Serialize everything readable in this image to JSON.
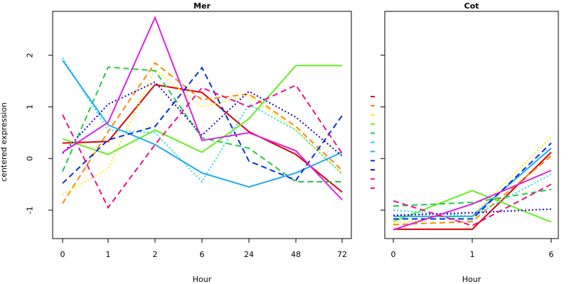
{
  "chart_data": [
    {
      "type": "line",
      "title": "Mer",
      "xlabel": "Hour",
      "ylabel": "centered expression",
      "categories": [
        "0",
        "1",
        "2",
        "6",
        "24",
        "48",
        "72"
      ],
      "yticks": [
        -1,
        0,
        1,
        2
      ],
      "ylim": [
        -1.55,
        2.85
      ],
      "series": [
        {
          "color": "#dd0000",
          "dash": "solid",
          "values": [
            0.3,
            0.33,
            1.43,
            1.28,
            0.52,
            0.08,
            -0.65
          ]
        },
        {
          "color": "#ff8800",
          "dash": "dashed",
          "values": [
            -0.87,
            0.52,
            1.85,
            1.14,
            1.25,
            0.62,
            -0.23
          ]
        },
        {
          "color": "#ffee22",
          "dash": "dotted",
          "values": [
            -0.7,
            -0.2,
            1.72,
            1.0,
            1.22,
            0.55,
            -0.3
          ]
        },
        {
          "color": "#66ee22",
          "dash": "solid",
          "values": [
            0.38,
            0.08,
            0.55,
            0.12,
            0.77,
            1.8,
            1.8
          ]
        },
        {
          "color": "#22cc44",
          "dash": "dashed",
          "values": [
            -0.25,
            1.77,
            1.7,
            0.4,
            0.2,
            -0.45,
            -0.45
          ]
        },
        {
          "color": "#22dddd",
          "dash": "dotted",
          "values": [
            1.95,
            0.55,
            0.5,
            -0.45,
            1.05,
            0.55,
            -0.3
          ]
        },
        {
          "color": "#22aaee",
          "dash": "solid",
          "values": [
            1.9,
            0.65,
            0.27,
            -0.28,
            -0.55,
            -0.28,
            0.12
          ]
        },
        {
          "color": "#0033dd",
          "dash": "dashed",
          "values": [
            -0.48,
            0.36,
            0.62,
            1.76,
            -0.05,
            -0.42,
            0.83
          ]
        },
        {
          "color": "#2200cc",
          "dash": "dotted",
          "values": [
            0.1,
            1.05,
            1.48,
            0.45,
            1.3,
            0.8,
            0.05
          ]
        },
        {
          "color": "#dd22dd",
          "dash": "solid",
          "values": [
            0.12,
            0.7,
            2.73,
            0.35,
            0.5,
            0.15,
            -0.8
          ]
        },
        {
          "color": "#ee1188",
          "dash": "dashed",
          "values": [
            0.85,
            -0.95,
            0.27,
            1.37,
            1.0,
            1.42,
            0.1
          ]
        }
      ]
    },
    {
      "type": "line",
      "title": "Cot",
      "xlabel": "Hour",
      "ylabel": "",
      "categories": [
        "0",
        "1",
        "6"
      ],
      "yticks": [
        -1,
        0,
        1,
        2
      ],
      "ylim": [
        -1.55,
        2.85
      ],
      "series": [
        {
          "color": "#dd0000",
          "dash": "solid",
          "values": [
            -1.37,
            -1.37,
            0.12
          ]
        },
        {
          "color": "#ff8800",
          "dash": "dashed",
          "values": [
            -1.28,
            -1.22,
            0.05
          ]
        },
        {
          "color": "#ffee22",
          "dash": "dotted",
          "values": [
            -1.25,
            -1.1,
            0.42
          ]
        },
        {
          "color": "#66ee22",
          "dash": "solid",
          "values": [
            -1.22,
            -0.62,
            -1.23
          ]
        },
        {
          "color": "#22cc44",
          "dash": "dashed",
          "values": [
            -0.92,
            -0.85,
            -0.6
          ]
        },
        {
          "color": "#22dddd",
          "dash": "dotted",
          "values": [
            -1.0,
            -1.12,
            -0.3
          ]
        },
        {
          "color": "#22aaee",
          "dash": "solid",
          "values": [
            -1.12,
            -1.12,
            0.2
          ]
        },
        {
          "color": "#0033dd",
          "dash": "dashed",
          "values": [
            -1.17,
            -1.17,
            0.3
          ]
        },
        {
          "color": "#2200cc",
          "dash": "dotted",
          "values": [
            -1.1,
            -1.05,
            -0.98
          ]
        },
        {
          "color": "#dd22dd",
          "dash": "solid",
          "values": [
            -1.38,
            -0.88,
            -0.23
          ]
        },
        {
          "color": "#ee1188",
          "dash": "dashed",
          "values": [
            -0.82,
            -1.3,
            -0.5
          ]
        }
      ]
    }
  ],
  "legend": {
    "placement": "between-panels",
    "colors": [
      "#dd0000",
      "#ff8800",
      "#ffee22",
      "#66ee22",
      "#22cc44",
      "#22dddd",
      "#22aaee",
      "#0033dd",
      "#2200cc",
      "#dd22dd",
      "#ee1188"
    ]
  }
}
